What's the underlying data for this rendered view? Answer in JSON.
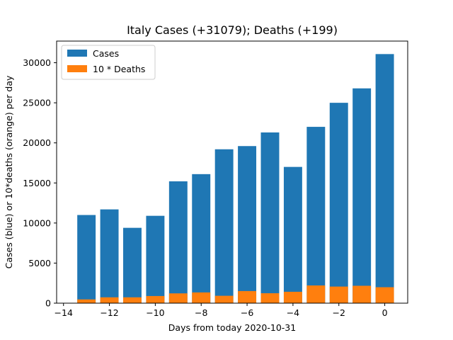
{
  "chart_data": {
    "type": "bar",
    "title": "Italy Cases (+31079); Deaths (+199)",
    "xlabel": "Days from today 2020-10-31",
    "ylabel": "Cases (blue) or 10*deaths (orange) per day",
    "x": [
      -13,
      -12,
      -11,
      -10,
      -9,
      -8,
      -7,
      -6,
      -5,
      -4,
      -3,
      -2,
      -1,
      0
    ],
    "xlim": [
      -14.3,
      1.0
    ],
    "ylim": [
      0,
      32700
    ],
    "xticks": [
      -14,
      -12,
      -10,
      -8,
      -6,
      -4,
      -2,
      0
    ],
    "xtick_labels": [
      "−14",
      "−12",
      "−10",
      "−8",
      "−6",
      "−4",
      "−2",
      "0"
    ],
    "yticks": [
      0,
      5000,
      10000,
      15000,
      20000,
      25000,
      30000
    ],
    "ytick_labels": [
      "0",
      "5000",
      "10000",
      "15000",
      "20000",
      "25000",
      "30000"
    ],
    "grid": false,
    "legend_placement": "top-left",
    "series": [
      {
        "name": "Cases",
        "color": "#1f77b4",
        "values": [
          11000,
          11700,
          9400,
          10900,
          15200,
          16100,
          19200,
          19600,
          21300,
          17000,
          22000,
          25000,
          26800,
          31079
        ]
      },
      {
        "name": "10 * Deaths",
        "color": "#ff7f0e",
        "values": [
          470,
          730,
          730,
          890,
          1220,
          1340,
          920,
          1510,
          1240,
          1420,
          2210,
          2070,
          2170,
          1990
        ]
      }
    ]
  }
}
